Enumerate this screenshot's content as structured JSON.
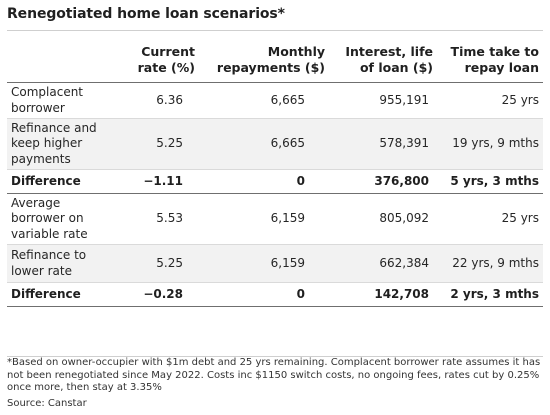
{
  "title": "Renegotiated home loan scenarios*",
  "table": {
    "headers": [
      "",
      "Current rate (%)",
      "Monthly repayments ($)",
      "Interest, life of loan ($)",
      "Time take to repay loan"
    ],
    "rows": [
      {
        "type": "data",
        "label": "Complacent borrower",
        "current_rate": "6.36",
        "monthly_repayments": "6,665",
        "interest_life_of_loan": "955,191",
        "time_to_repay": "25 yrs"
      },
      {
        "type": "data",
        "label": "Refinance and keep higher payments",
        "current_rate": "5.25",
        "monthly_repayments": "6,665",
        "interest_life_of_loan": "578,391",
        "time_to_repay": "19 yrs, 9 mths"
      },
      {
        "type": "difference",
        "label": "Difference",
        "current_rate": "−1.11",
        "monthly_repayments": "0",
        "interest_life_of_loan": "376,800",
        "time_to_repay": "5 yrs, 3 mths"
      },
      {
        "type": "data",
        "label": "Average borrower on variable rate",
        "current_rate": "5.53",
        "monthly_repayments": "6,159",
        "interest_life_of_loan": "805,092",
        "time_to_repay": "25 yrs"
      },
      {
        "type": "data",
        "label": "Refinance to lower rate",
        "current_rate": "5.25",
        "monthly_repayments": "6,159",
        "interest_life_of_loan": "662,384",
        "time_to_repay": "22 yrs, 9 mths"
      },
      {
        "type": "difference",
        "label": "Difference",
        "current_rate": "−0.28",
        "monthly_repayments": "0",
        "interest_life_of_loan": "142,708",
        "time_to_repay": "2 yrs, 3 mths"
      }
    ]
  },
  "footnote": "*Based on owner-occupier with $1m debt and 25 yrs remaining. Complacent borrower rate assumes it has not been renegotiated since May 2022. Costs inc $1150 switch costs, no ongoing fees, rates cut by 0.25% once more, then stay at 3.35%",
  "source": "Source: Canstar"
}
